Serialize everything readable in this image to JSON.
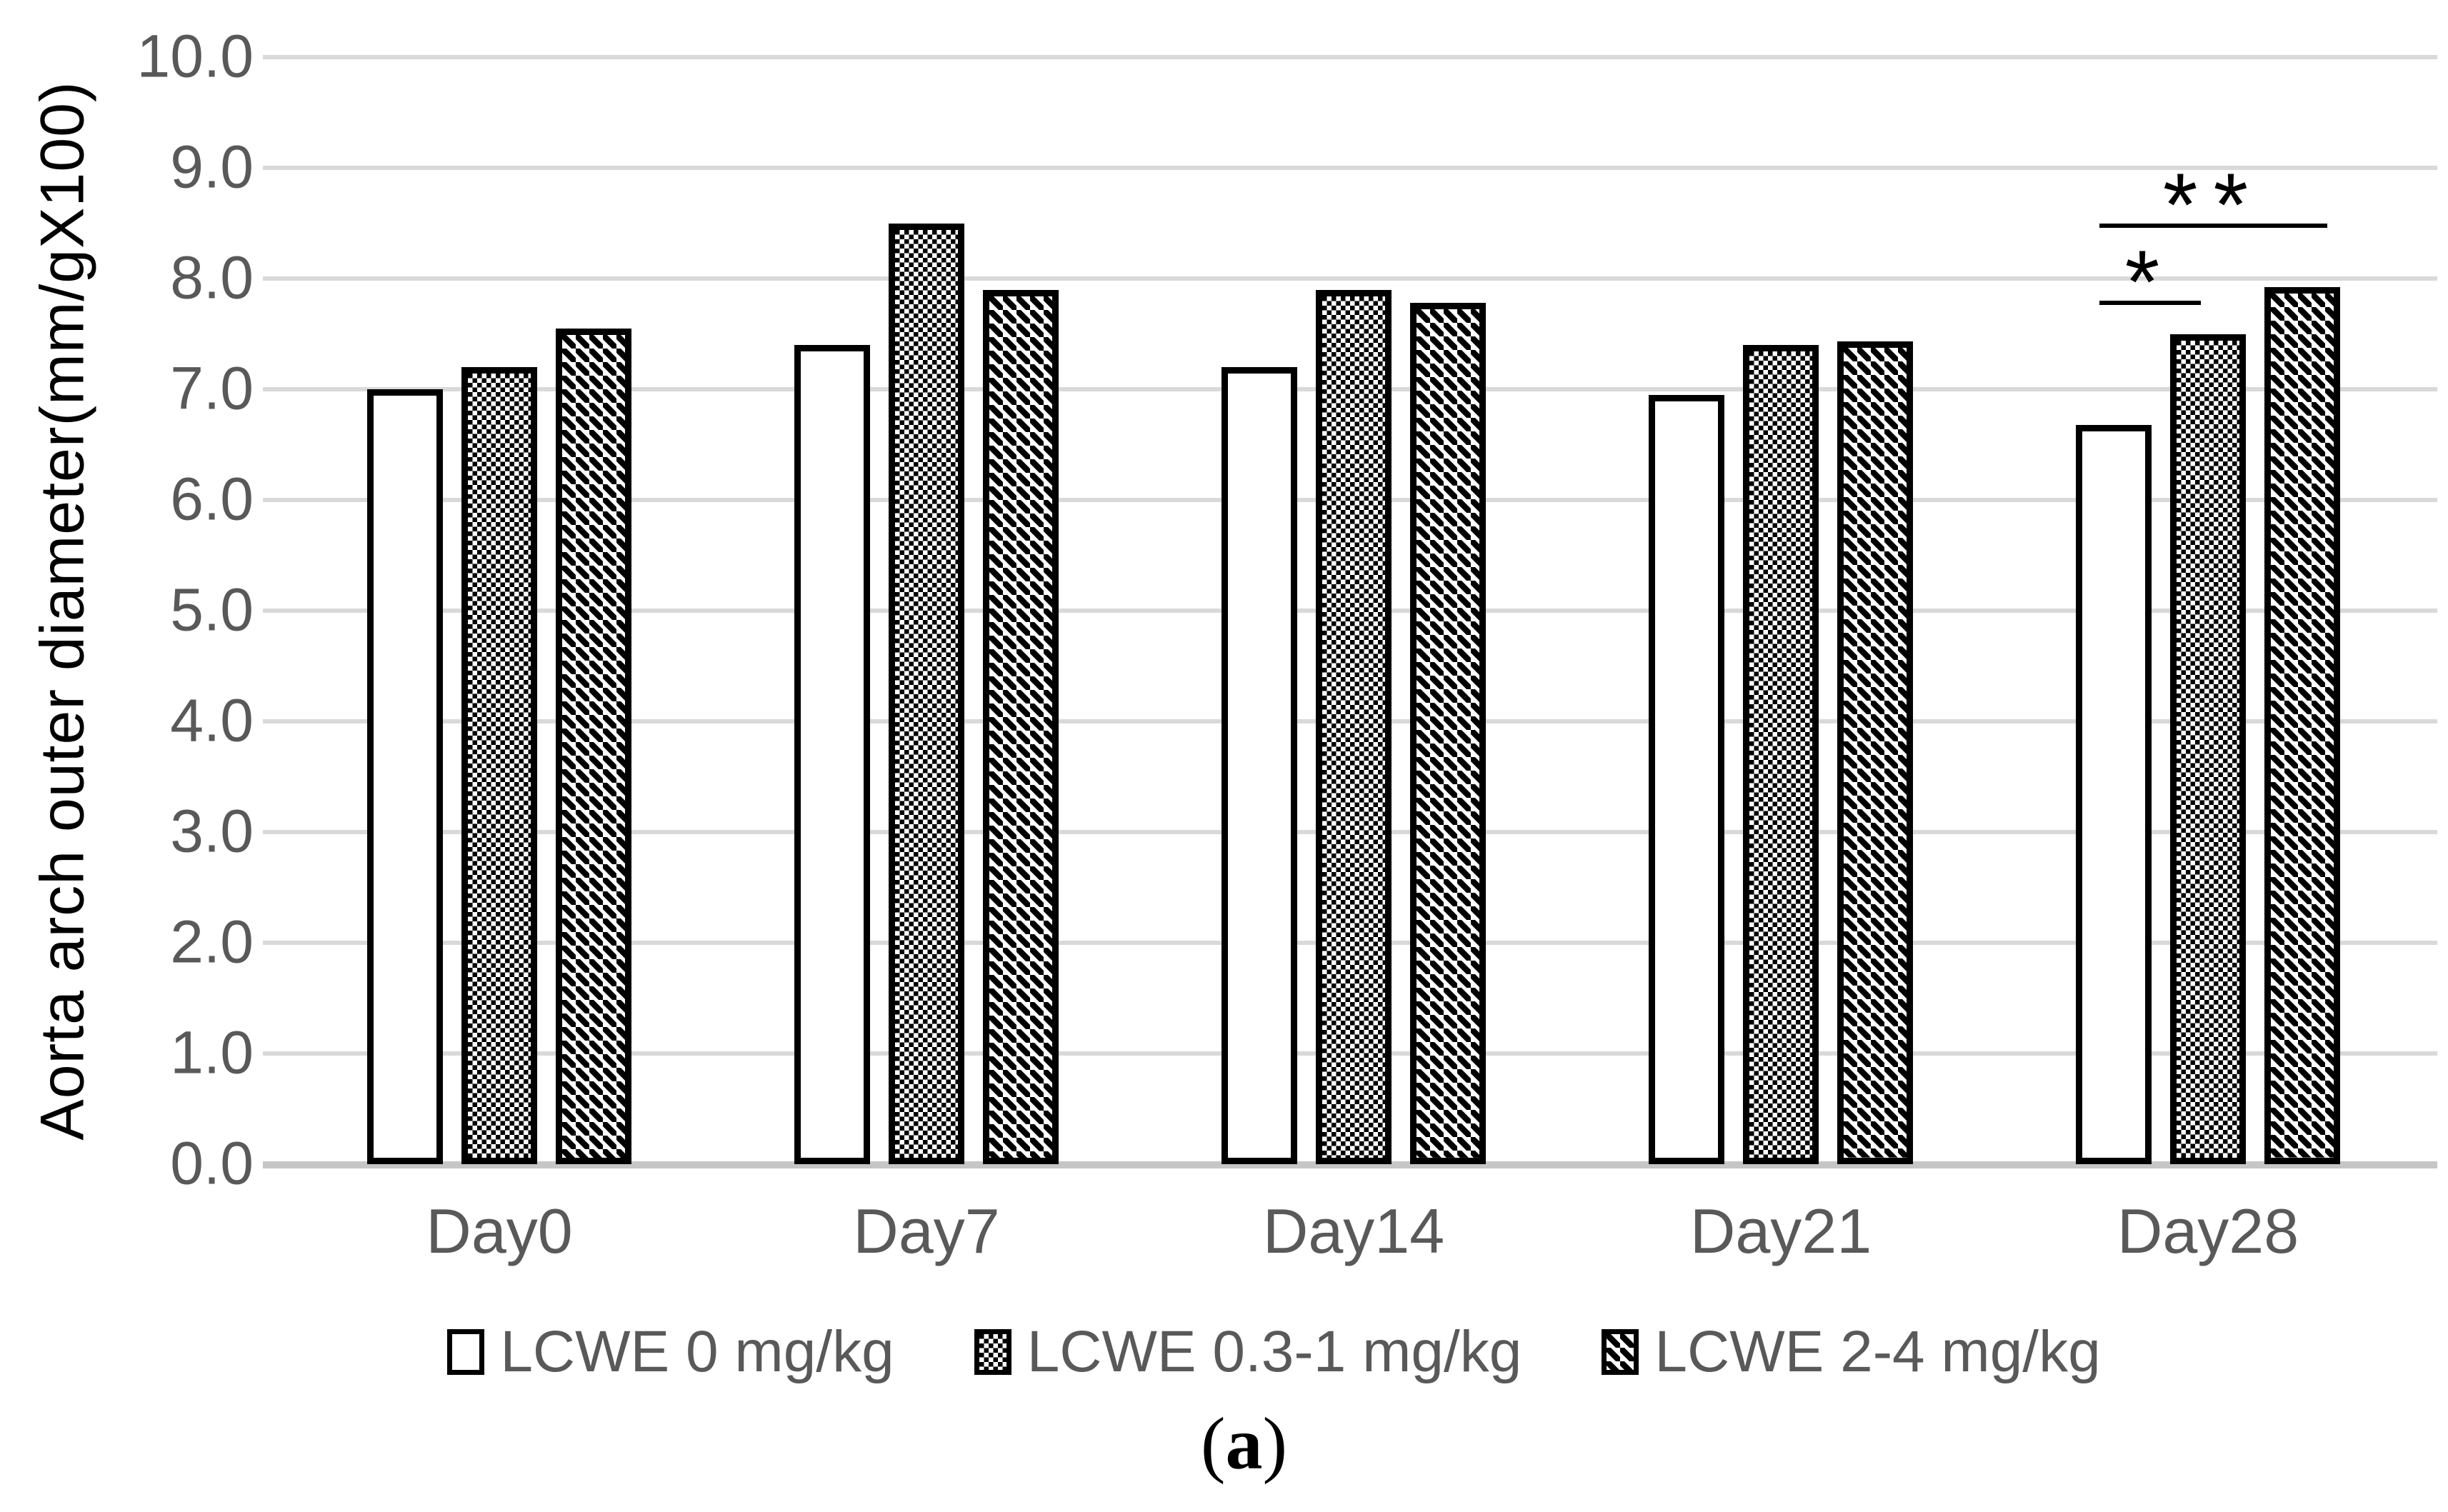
{
  "figure": {
    "background": "#ffffff",
    "caption": {
      "open": "(",
      "letter": "a",
      "close": ")"
    }
  },
  "chart_data": {
    "type": "bar",
    "title": "",
    "xlabel": "",
    "ylabel": "Aorta arch outer diameter(mm/gX100)",
    "categories": [
      "Day0",
      "Day7",
      "Day14",
      "Day21",
      "Day28"
    ],
    "series": [
      {
        "name": "LCWE 0 mg/kg",
        "pattern": "plain-white",
        "values": [
          7.0,
          7.4,
          7.2,
          6.95,
          6.68
        ]
      },
      {
        "name": "LCWE 0.3-1 mg/kg",
        "pattern": "checker",
        "values": [
          7.2,
          8.5,
          7.9,
          7.4,
          7.5
        ]
      },
      {
        "name": "LCWE 2-4 mg/kg",
        "pattern": "diagonal-hatch",
        "values": [
          7.55,
          7.9,
          7.78,
          7.43,
          7.92
        ]
      }
    ],
    "ylim": [
      0,
      10
    ],
    "ytick_labels": [
      "0.0",
      "1.0",
      "2.0",
      "3.0",
      "4.0",
      "5.0",
      "6.0",
      "7.0",
      "8.0",
      "9.0",
      "10.0"
    ],
    "grid": "horizontal",
    "legend_position": "bottom",
    "annotations": [
      {
        "label": "*",
        "name": "single-star",
        "category": "Day28",
        "from_series": 0,
        "to_series": 1,
        "y": 7.8
      },
      {
        "label": "**",
        "name": "double-star",
        "category": "Day28",
        "from_series": 0,
        "to_series": 2,
        "y": 8.5
      }
    ],
    "colors": {
      "bar_border": "#000000",
      "grid_line": "#d9d9d9",
      "axis_line": "#c6c6c6",
      "tick_text": "#595959",
      "legend_text": "#595959",
      "axis_title_text": "#000000",
      "annotation": "#000000"
    }
  }
}
